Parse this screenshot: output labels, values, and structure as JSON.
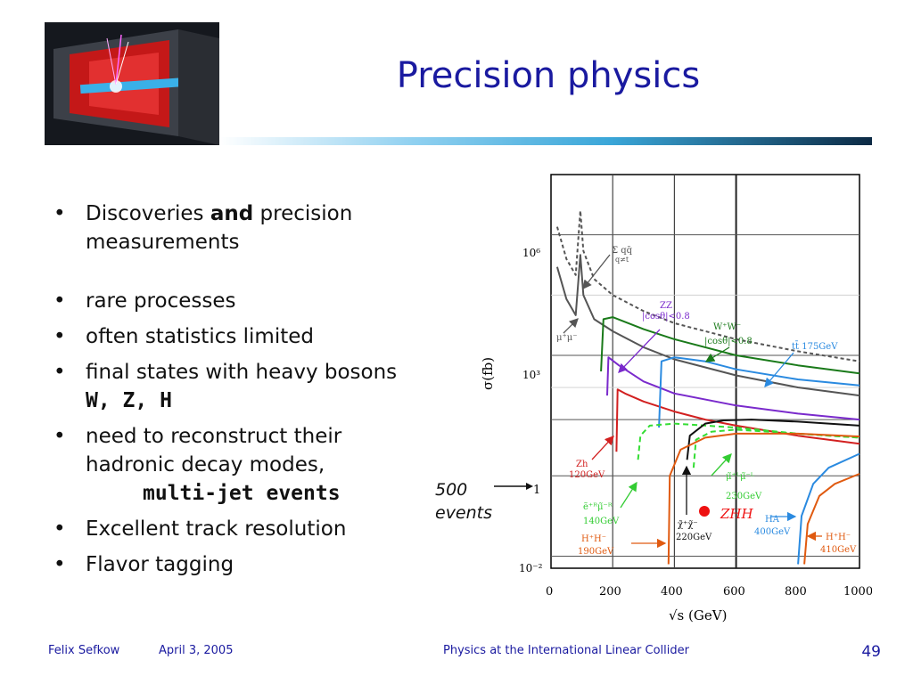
{
  "title": "Precision physics",
  "bullets": {
    "b1_pre": "Discoveries ",
    "b1_bold": "and",
    "b1_post": " precision measurements",
    "b2": "rare processes",
    "b3": "often statistics limited",
    "b4_text": "final states with heavy bosons ",
    "b4_bold": "W, Z, H",
    "b5_text": "need to reconstruct their hadronic decay modes,",
    "b5_bold": "multi-jet events",
    "b6": "Excellent track resolution",
    "b7": "Flavor tagging"
  },
  "events_label": {
    "line1": "500",
    "line2": "events"
  },
  "footer": {
    "author": "Felix Sefkow",
    "date": "April 3, 2005",
    "talk": "Physics at the International Linear Collider",
    "page": "49"
  },
  "chart_data": {
    "type": "line",
    "xlabel": "√s (GeV)",
    "ylabel": "σ(fb)",
    "xlim": [
      0,
      1000
    ],
    "y_scale": "log",
    "x_ticks": [
      "0",
      "200",
      "400",
      "600",
      "800",
      "1000"
    ],
    "y_ticks": [
      "10⁻²",
      "1",
      "10³",
      "10⁶"
    ],
    "grid": true,
    "colors": {
      "dark_gray": "#555555",
      "green": "#1a7a1a",
      "purple": "#7a2acc",
      "red": "#d22020",
      "blue": "#2a8ae0",
      "light_green": "#33dd33",
      "orange": "#e05a10",
      "black": "#111111"
    },
    "annotations": {
      "qq": "Σ qq̄",
      "qq_sub": "q≠t",
      "mumu": "μ⁺μ⁻",
      "zz_name": "ZZ",
      "zz_cut": "|cosθ|<0.8",
      "ww_name": "W⁺W⁻",
      "ww_cut": "|cosθ|<0.8",
      "tt": "tt̄ 175GeV",
      "zh_name": "Zh",
      "zh_mass": "120GeV",
      "emu_name": "ẽ⁺ᴿμ̃⁻ᴿ",
      "emu_mass": "140GeV",
      "mu_name": "μ̃⁺ᴸμ̃⁻ᴸ",
      "mu_mass": "230GeV",
      "chi_name": "χ̃⁺χ̃⁻",
      "chi_mass": "220GeV",
      "hh_name": "H⁺H⁻",
      "hh_mass": "190GeV",
      "zhh": "ZHH",
      "ha_name": "HA",
      "ha_mass": "400GeV",
      "hh2_name": "H⁺H⁻",
      "hh2_mass": "410GeV"
    }
  }
}
